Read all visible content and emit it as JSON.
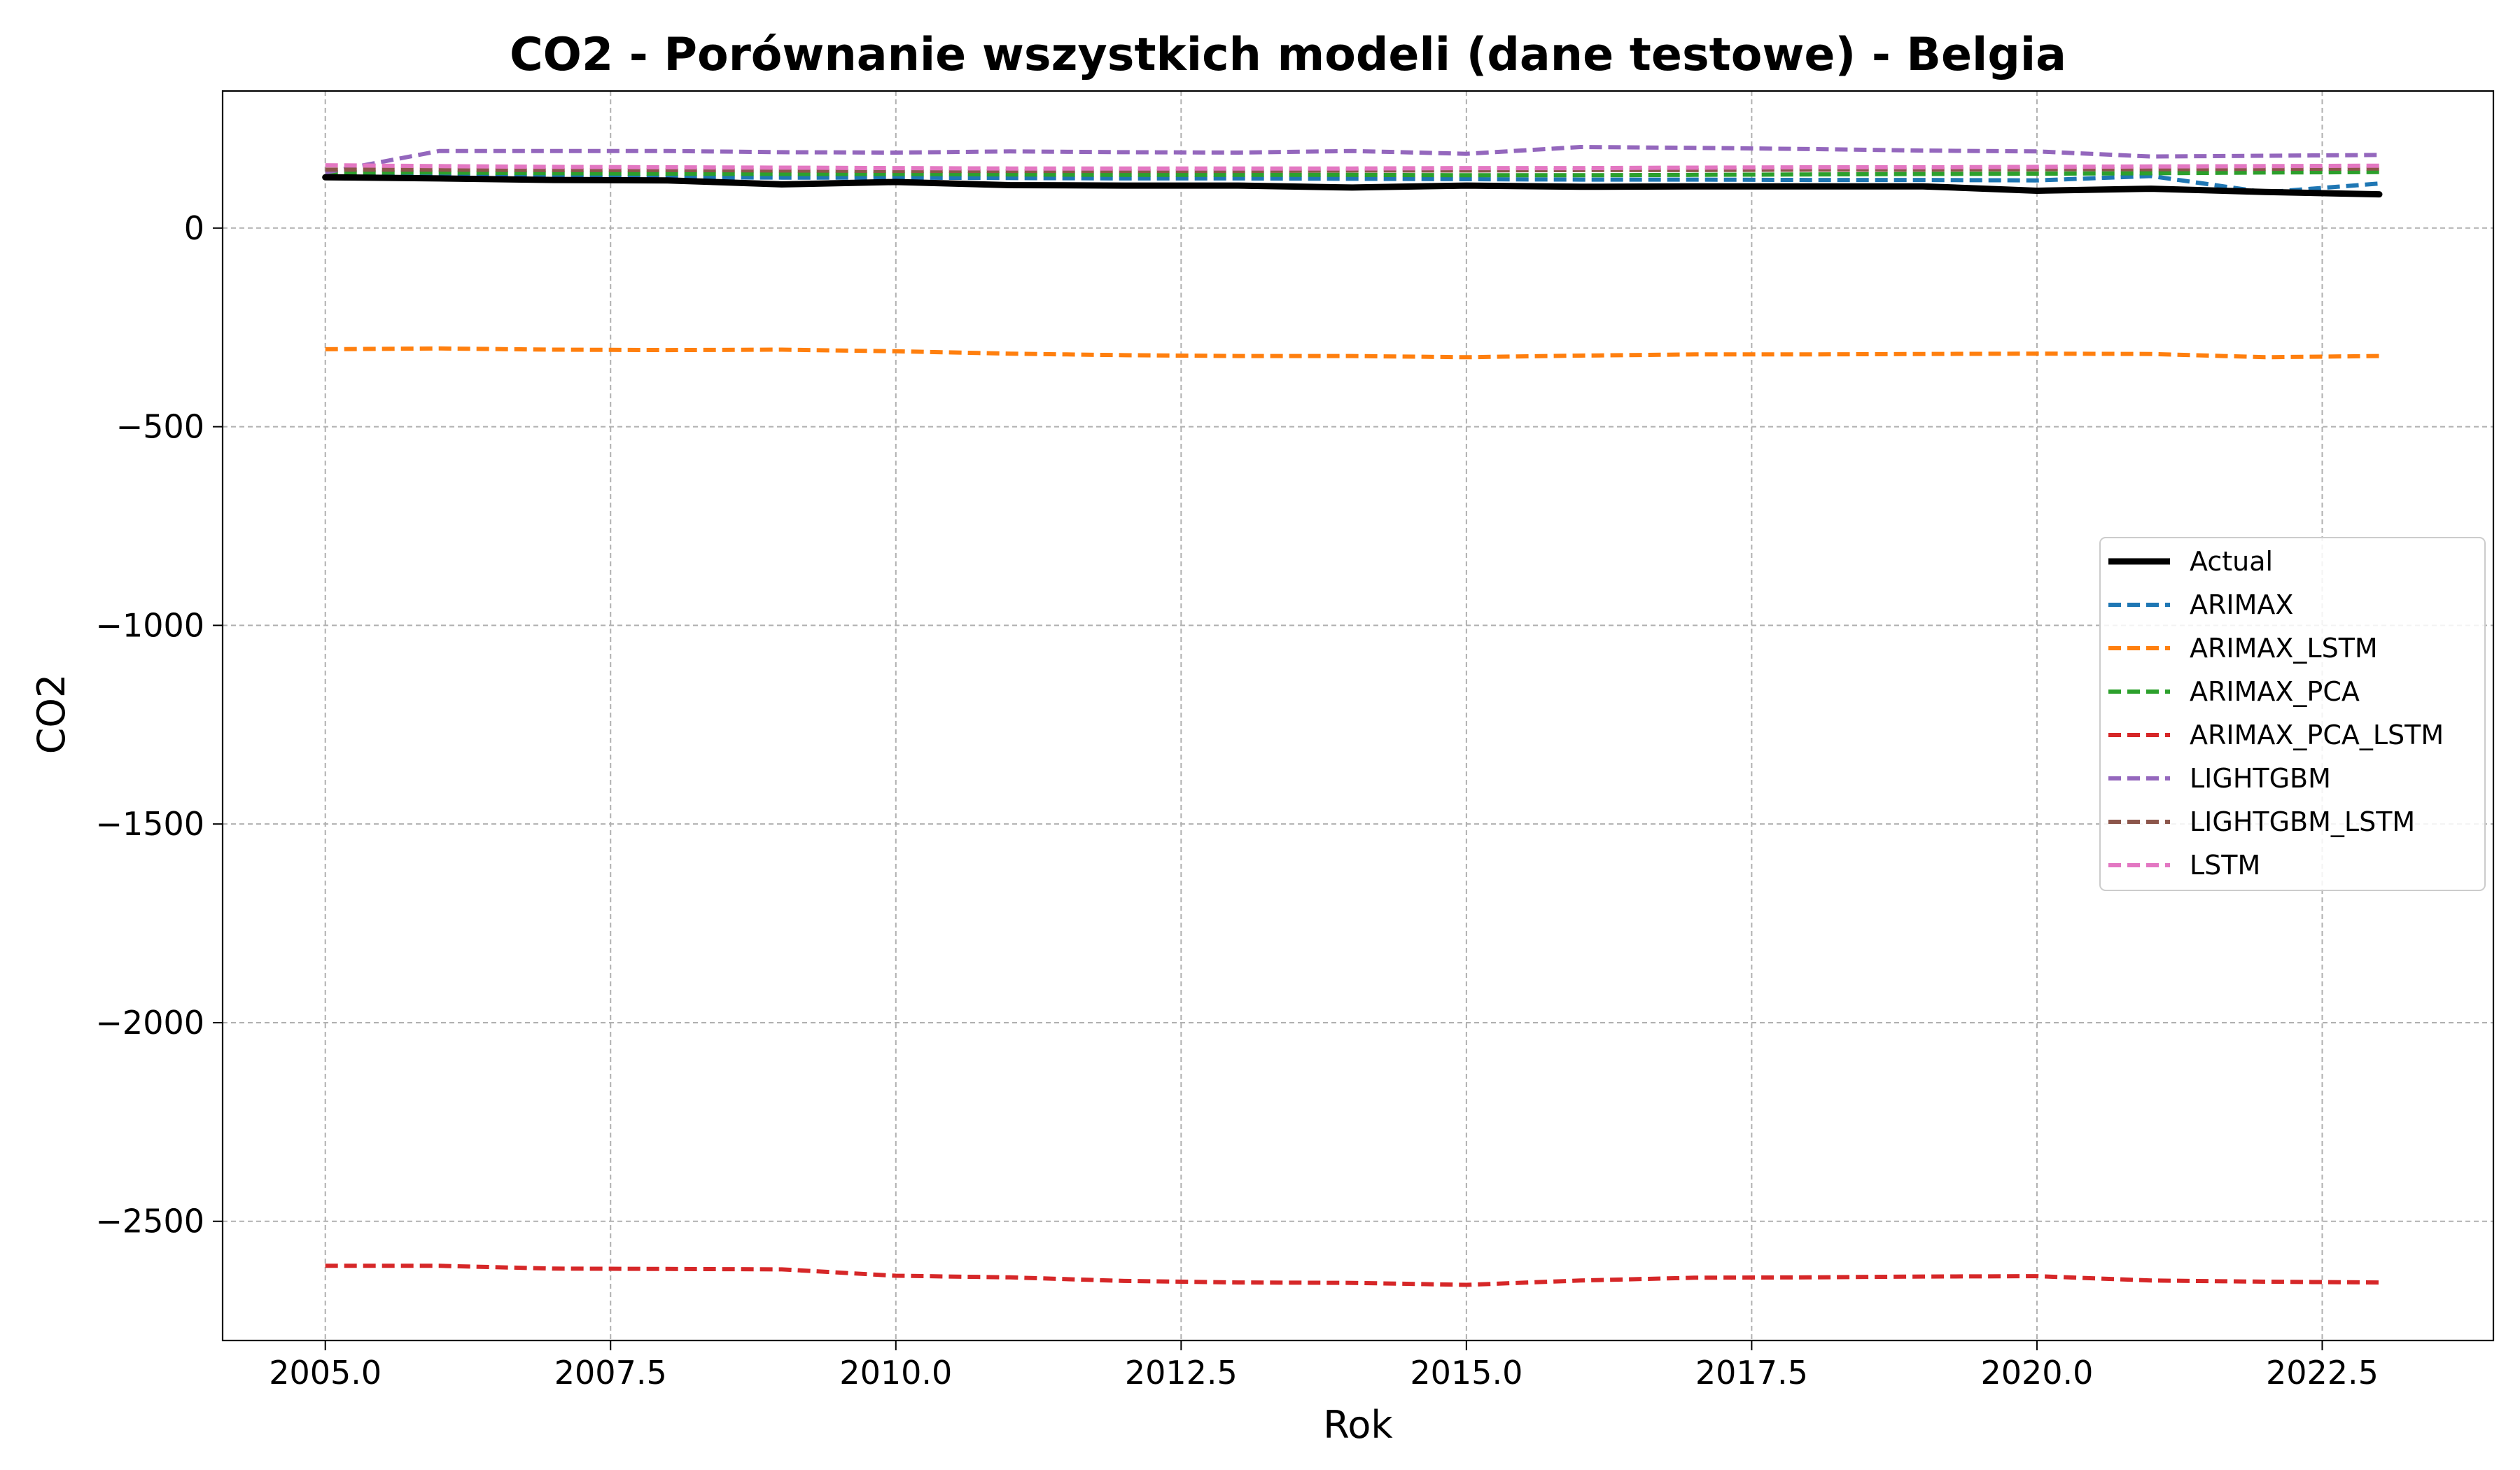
{
  "chart_data": {
    "type": "line",
    "title": "CO2 - Porównanie wszystkich modeli (dane testowe) - Belgia",
    "xlabel": "Rok",
    "ylabel": "CO2",
    "xlim": [
      2004.1,
      2024.0
    ],
    "ylim": [
      -2800,
      345
    ],
    "xticks": [
      2005.0,
      2007.5,
      2010.0,
      2012.5,
      2015.0,
      2017.5,
      2020.0,
      2022.5
    ],
    "xtick_labels": [
      "2005.0",
      "2007.5",
      "2010.0",
      "2012.5",
      "2015.0",
      "2017.5",
      "2020.0",
      "2022.5"
    ],
    "yticks": [
      0,
      -500,
      -1000,
      -1500,
      -2000,
      -2500
    ],
    "ytick_labels": [
      "0",
      "−500",
      "−1000",
      "−1500",
      "−2000",
      "−2500"
    ],
    "grid": true,
    "legend_position": "center-right",
    "x": [
      2005,
      2006,
      2007,
      2008,
      2009,
      2010,
      2011,
      2012,
      2013,
      2014,
      2015,
      2016,
      2017,
      2018,
      2019,
      2020,
      2021,
      2022,
      2023
    ],
    "series": [
      {
        "name": "Actual",
        "color": "#000000",
        "style": "solid",
        "values": [
          128,
          125,
          121,
          120,
          110,
          116,
          108,
          107,
          107,
          102,
          107,
          104,
          105,
          105,
          105,
          94,
          99,
          91,
          85
        ]
      },
      {
        "name": "ARIMAX",
        "color": "#1f77b4",
        "style": "dashed",
        "values": [
          130,
          130,
          129,
          128,
          127,
          127,
          126,
          125,
          125,
          124,
          123,
          122,
          122,
          121,
          121,
          120,
          131,
          90,
          112
        ]
      },
      {
        "name": "ARIMAX_LSTM",
        "color": "#ff7f0e",
        "style": "dashed",
        "values": [
          -305,
          -303,
          -306,
          -307,
          -306,
          -310,
          -316,
          -320,
          -322,
          -322,
          -325,
          -321,
          -318,
          -318,
          -317,
          -316,
          -317,
          -325,
          -322
        ]
      },
      {
        "name": "ARIMAX_PCA",
        "color": "#2ca02c",
        "style": "dashed",
        "values": [
          140,
          140,
          138,
          137,
          136,
          136,
          135,
          134,
          134,
          134,
          133,
          133,
          134,
          135,
          136,
          137,
          138,
          140,
          141
        ]
      },
      {
        "name": "ARIMAX_PCA_LSTM",
        "color": "#d62728",
        "style": "dashed",
        "values": [
          -2612,
          -2612,
          -2619,
          -2620,
          -2621,
          -2637,
          -2641,
          -2650,
          -2654,
          -2655,
          -2660,
          -2649,
          -2642,
          -2641,
          -2639,
          -2638,
          -2649,
          -2652,
          -2654
        ]
      },
      {
        "name": "LIGHTGBM",
        "color": "#9467bd",
        "style": "dashed",
        "values": [
          140,
          194,
          194,
          194,
          191,
          190,
          193,
          191,
          190,
          194,
          187,
          204,
          202,
          199,
          195,
          193,
          180,
          182,
          184
        ]
      },
      {
        "name": "LIGHTGBM_LSTM",
        "color": "#8c564b",
        "style": "dashed",
        "values": [
          147,
          147,
          146,
          146,
          145,
          144,
          144,
          144,
          144,
          145,
          145,
          146,
          146,
          147,
          147,
          148,
          148,
          149,
          150
        ]
      },
      {
        "name": "LSTM",
        "color": "#e377c2",
        "style": "dashed",
        "values": [
          158,
          156,
          154,
          153,
          152,
          151,
          150,
          150,
          150,
          150,
          151,
          151,
          152,
          153,
          153,
          154,
          155,
          156,
          157
        ]
      }
    ]
  }
}
